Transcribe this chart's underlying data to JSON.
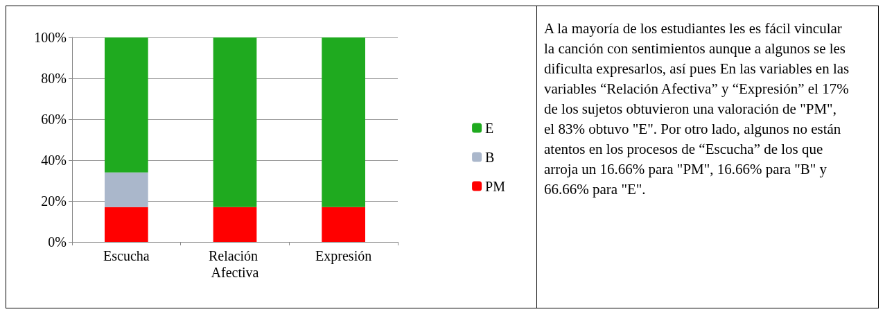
{
  "chart_data": {
    "type": "bar",
    "stacked": true,
    "categories": [
      "Escucha",
      "Relación Afectiva",
      "Expresión"
    ],
    "series": [
      {
        "name": "PM",
        "color": "#ff0000",
        "values": [
          17,
          17,
          17
        ]
      },
      {
        "name": "B",
        "color": "#aab7cb",
        "values": [
          17,
          0,
          0
        ]
      },
      {
        "name": "E",
        "color": "#1faa1f",
        "values": [
          66,
          83,
          83
        ]
      }
    ],
    "ylim": [
      0,
      100
    ],
    "yticks": [
      {
        "value": 0,
        "label": "0%"
      },
      {
        "value": 20,
        "label": "20%"
      },
      {
        "value": 40,
        "label": "40%"
      },
      {
        "value": 60,
        "label": "60%"
      },
      {
        "value": 80,
        "label": "80%"
      },
      {
        "value": 100,
        "label": "100%"
      }
    ],
    "grid": "y",
    "legend": "right",
    "annotations": [
      "A la mayoría de los estudiantes les es fácil vincular la canción con sentimientos aunque a algunos se les dificulta expresarlos, así pues En las variables en las variables “Relación Afectiva” y “Expresión” el 17% de los sujetos obtuvieron una valoración de \"PM\", el 83% obtuvo \"E\". Por otro lado, algunos no están atentos en los procesos de “Escucha” de los que arroja un 16.66% para \"PM\", 16.66% para \"B\" y 66.66% para \"E\"."
    ]
  }
}
